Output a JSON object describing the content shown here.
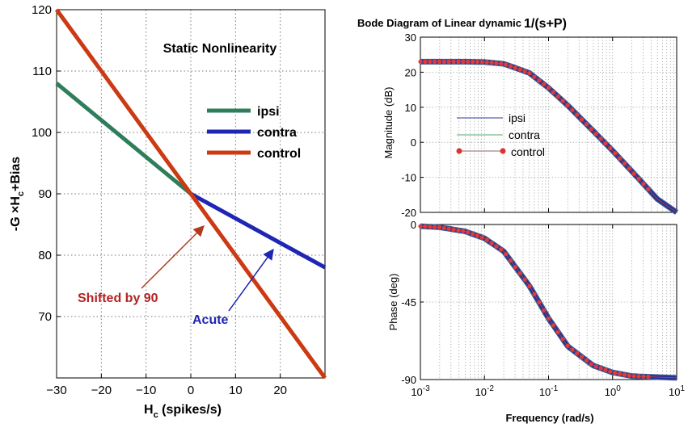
{
  "chart_data": [
    {
      "type": "line",
      "title": "Static Nonlinearity",
      "xlabel": "H",
      "xlabel_sub": "c",
      "xlabel_units": " (spikes/s)",
      "ylabel_parts": [
        "-G ×H",
        "c",
        "+Bias"
      ],
      "xlim": [
        -30,
        30
      ],
      "ylim": [
        60,
        120
      ],
      "xticks": [
        -30,
        -20,
        -10,
        0,
        10,
        20
      ],
      "yticks": [
        70,
        80,
        90,
        100,
        110,
        120
      ],
      "grid": true,
      "legend_position": "center-right",
      "series": [
        {
          "name": "ipsi",
          "color": "#2e7d5b",
          "x": [
            -30,
            0
          ],
          "y": [
            108,
            90
          ]
        },
        {
          "name": "contra",
          "color": "#1f26b4",
          "x": [
            0,
            30
          ],
          "y": [
            90,
            78
          ]
        },
        {
          "name": "control",
          "color": "#cc3a13",
          "x": [
            -30,
            30
          ],
          "y": [
            120,
            60
          ]
        }
      ],
      "annotations": [
        {
          "text": "Shifted by 90",
          "color": "#b22222",
          "arrow_to": [
            3,
            86
          ]
        },
        {
          "text": "Acute",
          "color": "#1f26b4",
          "arrow_to": [
            18,
            82
          ]
        }
      ]
    },
    {
      "type": "line",
      "title": "Bode Diagram of Linear dynamic",
      "title_formula": "1/(s+P)",
      "ylabel": "Magnitude (dB)",
      "xscale": "log",
      "xlim": [
        0.001,
        10
      ],
      "ylim": [
        -20,
        30
      ],
      "yticks": [
        -20,
        -10,
        0,
        10,
        20,
        30
      ],
      "grid": true,
      "legend_position": "center-left",
      "series": [
        {
          "name": "ipsi",
          "color": "#2a3c96"
        },
        {
          "name": "contra",
          "color": "#55a86a"
        },
        {
          "name": "control",
          "color": "#e03030",
          "marker": "circle"
        }
      ],
      "x": [
        0.001,
        0.002,
        0.005,
        0.01,
        0.02,
        0.05,
        0.1,
        0.2,
        0.5,
        1,
        2,
        5,
        10
      ],
      "values_db": [
        23,
        23,
        23,
        22.9,
        22.4,
        19.8,
        15.5,
        10.5,
        3.2,
        -2.4,
        -8.3,
        -16.2,
        -20
      ]
    },
    {
      "type": "line",
      "ylabel": "Phase (deg)",
      "xlabel": "Frequency  (rad/s)",
      "xscale": "log",
      "xlim": [
        0.001,
        10
      ],
      "ylim": [
        -90,
        0
      ],
      "yticks": [
        0,
        -45,
        -90
      ],
      "xticks": [
        "10^-3",
        "10^-2",
        "10^-1",
        "10^0",
        "10^1"
      ],
      "grid": true,
      "x": [
        0.001,
        0.002,
        0.005,
        0.01,
        0.02,
        0.05,
        0.1,
        0.2,
        0.5,
        1,
        2,
        5,
        10
      ],
      "values_deg": [
        -1,
        -1.6,
        -4,
        -8,
        -15.6,
        -35.5,
        -54.5,
        -70.7,
        -81.9,
        -85.9,
        -88,
        -88.6,
        -89
      ]
    }
  ]
}
